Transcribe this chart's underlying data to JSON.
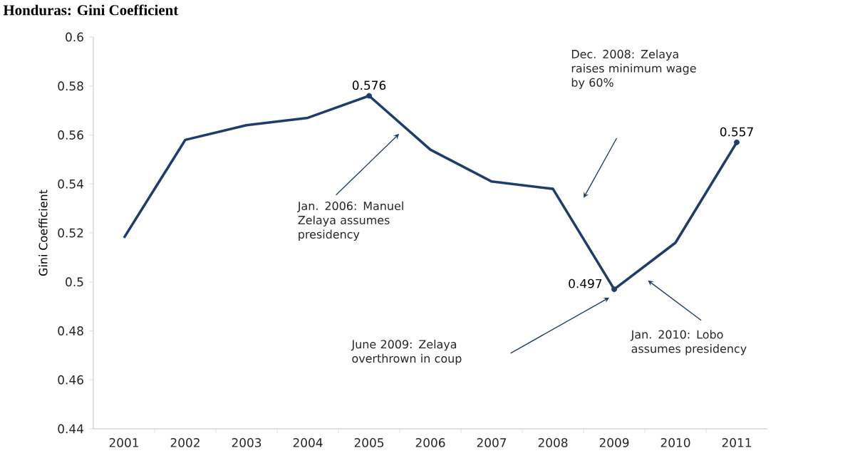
{
  "chart_data": {
    "type": "line",
    "title": "Honduras: Gini Coefficient",
    "ylabel": "Gini Coefficient",
    "categories": [
      "2001",
      "2002",
      "2003",
      "2004",
      "2005",
      "2006",
      "2007",
      "2008",
      "2009",
      "2010",
      "2011"
    ],
    "series": [
      {
        "color": "#1f3d6b",
        "values": [
          0.518,
          0.558,
          0.564,
          0.567,
          0.576,
          0.554,
          0.541,
          0.538,
          0.497,
          0.516,
          0.557
        ],
        "value_labels": [
          null,
          null,
          null,
          null,
          "0.576",
          null,
          null,
          null,
          "0.497",
          null,
          "0.557"
        ]
      }
    ],
    "ylim": [
      0.44,
      0.6
    ],
    "yticks": [
      0.44,
      0.46,
      0.48,
      0.5,
      0.52,
      0.54,
      0.56,
      0.58,
      0.6
    ],
    "line_style": "solid",
    "annotations": [
      "Jan. 2006: Manuel Zelaya assumes presidency",
      "Dec. 2008: Zelaya raises minimum wage by 60%",
      "June 2009: Zelaya overthrown in coup",
      "Jan. 2010: Lobo assumes presidency"
    ]
  }
}
